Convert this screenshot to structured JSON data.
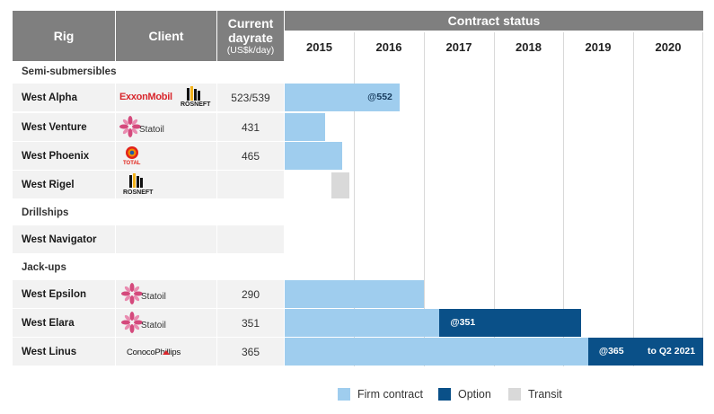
{
  "header": {
    "rig": "Rig",
    "client": "Client",
    "rate_line1": "Current",
    "rate_line2": "dayrate",
    "rate_unit": "(US$k/day)",
    "contract_status": "Contract status"
  },
  "years": [
    "2015",
    "2016",
    "2017",
    "2018",
    "2019",
    "2020"
  ],
  "sections": {
    "semi": "Semi-submersibles",
    "drill": "Drillships",
    "jack": "Jack-ups"
  },
  "rigs": [
    {
      "name": "West Alpha",
      "clients": [
        "ExxonMobil",
        "ROSNEFT"
      ],
      "dayrate": "523/539"
    },
    {
      "name": "West Venture",
      "clients": [
        "Statoil"
      ],
      "dayrate": "431"
    },
    {
      "name": "West Phoenix",
      "clients": [
        "TOTAL"
      ],
      "dayrate": "465"
    },
    {
      "name": "West Rigel",
      "clients": [
        "ROSNEFT"
      ],
      "dayrate": ""
    },
    {
      "name": "West Navigator",
      "clients": [],
      "dayrate": ""
    },
    {
      "name": "West Epsilon",
      "clients": [
        "Statoil"
      ],
      "dayrate": "290"
    },
    {
      "name": "West Elara",
      "clients": [
        "Statoil"
      ],
      "dayrate": "351"
    },
    {
      "name": "West Linus",
      "clients": [
        "ConocoPhillips"
      ],
      "dayrate": "365"
    }
  ],
  "chart_data": {
    "type": "gantt",
    "x_axis": {
      "type": "year",
      "range": [
        2015.0,
        2021.0
      ],
      "ticks": [
        "2015",
        "2016",
        "2017",
        "2018",
        "2019",
        "2020"
      ]
    },
    "series": [
      {
        "name": "Firm contract",
        "color": "#9fcdee"
      },
      {
        "name": "Option",
        "color": "#0a5088"
      },
      {
        "name": "Transit",
        "color": "#d9d9d9"
      }
    ],
    "bars": [
      {
        "rig": "West Alpha",
        "kind": "Firm contract",
        "start": 2015.0,
        "end": 2016.65,
        "label": "@552"
      },
      {
        "rig": "West Venture",
        "kind": "Firm contract",
        "start": 2015.0,
        "end": 2015.58,
        "label": ""
      },
      {
        "rig": "West Phoenix",
        "kind": "Firm contract",
        "start": 2015.0,
        "end": 2015.82,
        "label": ""
      },
      {
        "rig": "West Rigel",
        "kind": "Transit",
        "start": 2015.67,
        "end": 2015.93,
        "label": ""
      },
      {
        "rig": "West Epsilon",
        "kind": "Firm contract",
        "start": 2015.0,
        "end": 2017.0,
        "label": ""
      },
      {
        "rig": "West Elara",
        "kind": "Firm contract",
        "start": 2015.0,
        "end": 2017.22,
        "label": ""
      },
      {
        "rig": "West Elara",
        "kind": "Option",
        "start": 2017.22,
        "end": 2019.25,
        "label": "@351"
      },
      {
        "rig": "West Linus",
        "kind": "Firm contract",
        "start": 2015.0,
        "end": 2019.35,
        "label": ""
      },
      {
        "rig": "West Linus",
        "kind": "Option",
        "start": 2019.35,
        "end": 2021.0,
        "label": "@365",
        "label2": "to Q2 2021"
      }
    ]
  },
  "legend": [
    {
      "label": "Firm contract",
      "color": "#9fcdee"
    },
    {
      "label": "Option",
      "color": "#0a5088"
    },
    {
      "label": "Transit",
      "color": "#d9d9d9"
    }
  ]
}
